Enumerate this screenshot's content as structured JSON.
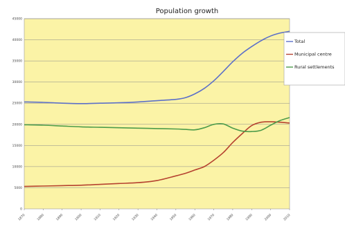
{
  "chart_data": {
    "type": "line",
    "title": "Population growth",
    "xlabel": "",
    "ylabel": "",
    "xlim": [
      1870,
      2010
    ],
    "ylim": [
      0,
      45000
    ],
    "yticks": [
      0,
      5000,
      10000,
      15000,
      20000,
      25000,
      30000,
      35000,
      40000,
      45000
    ],
    "xticks": [
      1870,
      1880,
      1890,
      1900,
      1910,
      1920,
      1930,
      1940,
      1950,
      1960,
      1970,
      1980,
      1990,
      2000,
      2010
    ],
    "grid": true,
    "legend": "right",
    "plot_background": "#fbf3a6",
    "series": [
      {
        "name": "Total",
        "color": "#5b6fc9",
        "x": [
          1870,
          1880,
          1890,
          1900,
          1910,
          1920,
          1930,
          1940,
          1950,
          1955,
          1960,
          1965,
          1970,
          1975,
          1980,
          1985,
          1990,
          1995,
          2000,
          2005,
          2010
        ],
        "y": [
          25300,
          25200,
          25000,
          24900,
          25000,
          25100,
          25300,
          25600,
          25900,
          26300,
          27200,
          28500,
          30300,
          32500,
          34800,
          36800,
          38400,
          39800,
          40900,
          41600,
          42000
        ]
      },
      {
        "name": "Municipal centre",
        "color": "#b5412f",
        "x": [
          1870,
          1880,
          1890,
          1900,
          1910,
          1920,
          1930,
          1940,
          1950,
          1955,
          1960,
          1965,
          1970,
          1975,
          1980,
          1985,
          1990,
          1995,
          2000,
          2005,
          2010
        ],
        "y": [
          5300,
          5400,
          5500,
          5600,
          5800,
          6000,
          6200,
          6700,
          7800,
          8400,
          9200,
          10000,
          11500,
          13300,
          15700,
          17800,
          19700,
          20500,
          20600,
          20500,
          20300
        ]
      },
      {
        "name": "Rural settlements",
        "color": "#4c9b4a",
        "x": [
          1870,
          1880,
          1890,
          1900,
          1910,
          1920,
          1930,
          1940,
          1950,
          1955,
          1960,
          1965,
          1970,
          1975,
          1980,
          1985,
          1990,
          1995,
          2000,
          2005,
          2010
        ],
        "y": [
          19900,
          19800,
          19600,
          19400,
          19300,
          19200,
          19100,
          19000,
          18900,
          18800,
          18700,
          19200,
          20000,
          20100,
          19100,
          18400,
          18300,
          18600,
          19800,
          20900,
          21600
        ]
      }
    ]
  }
}
